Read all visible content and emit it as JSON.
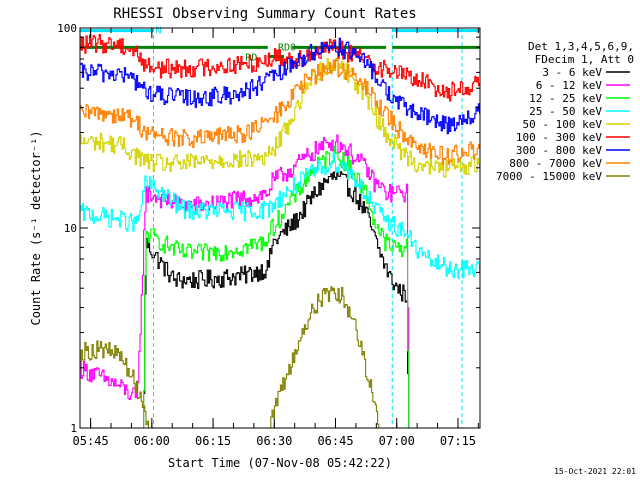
{
  "chart_data": {
    "type": "line",
    "title": "RHESSI Observing Summary Count Rates",
    "xlabel": "Start Time (07-Nov-08 05:42:22)",
    "ylabel": "Count Rate (s⁻¹ detector⁻¹)",
    "y_scale": "log",
    "ylim": [
      1,
      100
    ],
    "xlim_minutes": [
      0,
      98
    ],
    "x_ticks": [
      {
        "label": "05:45",
        "t": 2.6
      },
      {
        "label": "06:00",
        "t": 17.6
      },
      {
        "label": "06:15",
        "t": 32.6
      },
      {
        "label": "06:30",
        "t": 47.6
      },
      {
        "label": "06:45",
        "t": 62.6
      },
      {
        "label": "07:00",
        "t": 77.6
      },
      {
        "label": "07:15",
        "t": 92.6
      }
    ],
    "y_ticks": [
      {
        "label": "1",
        "v": 1
      },
      {
        "label": "10",
        "v": 10
      },
      {
        "label": "100",
        "v": 100
      }
    ],
    "legend": {
      "header": [
        "Det 1,3,4,5,6,9,",
        "FDecim 1, Att 0"
      ],
      "placement": "right"
    },
    "flags": [
      {
        "label": "N",
        "color": "#00e0ff",
        "level": 97,
        "segments": [
          [
            0,
            18
          ],
          [
            76.5,
            98
          ]
        ]
      },
      {
        "label": "RD0",
        "color": "#008000",
        "level": 80,
        "segments": [
          [
            0,
            46
          ],
          [
            52,
            75
          ],
          [
            76.5,
            98
          ]
        ]
      },
      {
        "label": "RD",
        "color": "#008000",
        "level": 72,
        "segments": [
          [
            46,
            50
          ]
        ]
      }
    ],
    "series": [
      {
        "name": "3 - 6 keV",
        "color": "#000000",
        "points": [
          [
            0,
            1
          ],
          [
            15.5,
            1
          ],
          [
            16,
            8.5
          ],
          [
            19,
            7
          ],
          [
            23,
            5.5
          ],
          [
            28,
            5.5
          ],
          [
            33,
            5.6
          ],
          [
            40,
            5.8
          ],
          [
            46,
            6.3
          ],
          [
            47,
            8.3
          ],
          [
            50,
            9.6
          ],
          [
            53,
            11
          ],
          [
            57,
            14.5
          ],
          [
            60,
            17
          ],
          [
            62,
            18
          ],
          [
            64,
            17.5
          ],
          [
            67,
            15
          ],
          [
            70,
            12
          ],
          [
            72,
            9
          ],
          [
            74,
            7
          ],
          [
            76,
            5.6
          ],
          [
            78,
            4.9
          ],
          [
            80,
            4.6
          ],
          [
            80.5,
            1
          ],
          [
            98,
            1
          ]
        ]
      },
      {
        "name": "6 - 12 keV",
        "color": "#ff00ff",
        "points": [
          [
            0,
            2
          ],
          [
            5,
            1.8
          ],
          [
            10,
            1.6
          ],
          [
            14,
            1.4
          ],
          [
            16,
            15
          ],
          [
            20,
            14
          ],
          [
            25,
            13
          ],
          [
            30,
            13
          ],
          [
            35,
            13.5
          ],
          [
            40,
            14
          ],
          [
            44,
            14.5
          ],
          [
            46,
            15
          ],
          [
            47,
            17
          ],
          [
            52,
            20
          ],
          [
            57,
            24
          ],
          [
            60,
            26
          ],
          [
            62,
            27
          ],
          [
            64,
            26
          ],
          [
            67,
            23
          ],
          [
            70,
            20
          ],
          [
            72,
            17
          ],
          [
            75,
            15
          ],
          [
            78,
            15
          ],
          [
            80,
            15
          ],
          [
            80.5,
            1
          ],
          [
            98,
            1
          ]
        ]
      },
      {
        "name": "12 - 25 keV",
        "color": "#00ff00",
        "points": [
          [
            0,
            1
          ],
          [
            15.5,
            1
          ],
          [
            16,
            9.5
          ],
          [
            20,
            8.5
          ],
          [
            25,
            7.5
          ],
          [
            30,
            7.5
          ],
          [
            35,
            7.7
          ],
          [
            40,
            8
          ],
          [
            45,
            8.5
          ],
          [
            47,
            10
          ],
          [
            52,
            14
          ],
          [
            57,
            19.5
          ],
          [
            60,
            22
          ],
          [
            62,
            23.5
          ],
          [
            64,
            22.5
          ],
          [
            67,
            19
          ],
          [
            70,
            15
          ],
          [
            72,
            11
          ],
          [
            74,
            9
          ],
          [
            76,
            8
          ],
          [
            78,
            8
          ],
          [
            80,
            8
          ],
          [
            80.5,
            1
          ],
          [
            98,
            1
          ]
        ]
      },
      {
        "name": "25 - 50 keV",
        "color": "#00ffff",
        "points": [
          [
            0,
            12
          ],
          [
            5,
            11.5
          ],
          [
            10,
            11
          ],
          [
            14,
            10.5
          ],
          [
            16,
            17
          ],
          [
            20,
            15
          ],
          [
            25,
            12.5
          ],
          [
            30,
            12.2
          ],
          [
            35,
            12.2
          ],
          [
            40,
            12.2
          ],
          [
            44,
            12.3
          ],
          [
            46,
            12.5
          ],
          [
            47,
            13
          ],
          [
            52,
            16
          ],
          [
            57,
            19
          ],
          [
            60,
            20.5
          ],
          [
            62,
            21.5
          ],
          [
            64,
            21
          ],
          [
            67,
            18
          ],
          [
            70,
            15
          ],
          [
            72,
            12.5
          ],
          [
            75,
            11
          ],
          [
            78,
            10
          ],
          [
            80,
            9.5
          ],
          [
            82,
            8
          ],
          [
            85,
            7
          ],
          [
            90,
            6.3
          ],
          [
            95,
            6.2
          ],
          [
            98,
            6.3
          ]
        ]
      },
      {
        "name": "50 - 100 keV",
        "color": "#d4d400",
        "points": [
          [
            0,
            27
          ],
          [
            5,
            27
          ],
          [
            10,
            26
          ],
          [
            14,
            23
          ],
          [
            16,
            21.5
          ],
          [
            20,
            21
          ],
          [
            25,
            21
          ],
          [
            30,
            21.5
          ],
          [
            35,
            22
          ],
          [
            40,
            22
          ],
          [
            45,
            22.5
          ],
          [
            47,
            24
          ],
          [
            52,
            36
          ],
          [
            55,
            50
          ],
          [
            58,
            60
          ],
          [
            60,
            64
          ],
          [
            62,
            66
          ],
          [
            64,
            64
          ],
          [
            67,
            56
          ],
          [
            70,
            46
          ],
          [
            72,
            38
          ],
          [
            74,
            32
          ],
          [
            76,
            28
          ],
          [
            78,
            25
          ],
          [
            80,
            23
          ],
          [
            83,
            21
          ],
          [
            86,
            20
          ],
          [
            90,
            20
          ],
          [
            94,
            20.5
          ],
          [
            98,
            21
          ]
        ]
      },
      {
        "name": "100 - 300 keV",
        "color": "#ff0000",
        "points": [
          [
            0,
            83
          ],
          [
            5,
            84
          ],
          [
            10,
            83
          ],
          [
            14,
            75
          ],
          [
            16,
            65
          ],
          [
            20,
            63
          ],
          [
            25,
            63
          ],
          [
            30,
            64
          ],
          [
            35,
            65
          ],
          [
            40,
            66
          ],
          [
            44,
            68
          ],
          [
            46,
            70
          ],
          [
            48,
            72
          ],
          [
            52,
            70
          ],
          [
            56,
            74
          ],
          [
            60,
            78
          ],
          [
            62,
            80
          ],
          [
            64,
            78
          ],
          [
            68,
            72
          ],
          [
            72,
            66
          ],
          [
            75,
            62
          ],
          [
            78,
            60
          ],
          [
            80,
            58
          ],
          [
            83,
            55
          ],
          [
            86,
            52
          ],
          [
            90,
            48
          ],
          [
            94,
            50
          ],
          [
            98,
            55
          ]
        ]
      },
      {
        "name": "300 - 800 keV",
        "color": "#0000ff",
        "points": [
          [
            0,
            60
          ],
          [
            5,
            60
          ],
          [
            10,
            59
          ],
          [
            14,
            54
          ],
          [
            16,
            48
          ],
          [
            20,
            46
          ],
          [
            25,
            45
          ],
          [
            30,
            45
          ],
          [
            35,
            46
          ],
          [
            40,
            48
          ],
          [
            44,
            52
          ],
          [
            46,
            55
          ],
          [
            48,
            58
          ],
          [
            52,
            66
          ],
          [
            56,
            74
          ],
          [
            60,
            80
          ],
          [
            62,
            83
          ],
          [
            64,
            80
          ],
          [
            68,
            72
          ],
          [
            72,
            60
          ],
          [
            74,
            52
          ],
          [
            76,
            46
          ],
          [
            78,
            42
          ],
          [
            80,
            40
          ],
          [
            83,
            37
          ],
          [
            86,
            35
          ],
          [
            90,
            33
          ],
          [
            94,
            35
          ],
          [
            98,
            38
          ]
        ]
      },
      {
        "name": "800 - 7000 keV",
        "color": "#ff8000",
        "points": [
          [
            0,
            37
          ],
          [
            5,
            38
          ],
          [
            10,
            37
          ],
          [
            14,
            34
          ],
          [
            16,
            30
          ],
          [
            20,
            29
          ],
          [
            25,
            28
          ],
          [
            30,
            28
          ],
          [
            35,
            29
          ],
          [
            40,
            30
          ],
          [
            44,
            32
          ],
          [
            46,
            34
          ],
          [
            48,
            37
          ],
          [
            52,
            46
          ],
          [
            56,
            56
          ],
          [
            60,
            62
          ],
          [
            62,
            65
          ],
          [
            64,
            63
          ],
          [
            68,
            55
          ],
          [
            72,
            45
          ],
          [
            74,
            39
          ],
          [
            76,
            35
          ],
          [
            78,
            31
          ],
          [
            80,
            29
          ],
          [
            83,
            26
          ],
          [
            86,
            24
          ],
          [
            90,
            23
          ],
          [
            94,
            24
          ],
          [
            98,
            25
          ]
        ]
      },
      {
        "name": "7000 - 15000 keV",
        "color": "#808000",
        "points": [
          [
            0,
            2.4
          ],
          [
            5,
            2.5
          ],
          [
            10,
            2.3
          ],
          [
            14,
            1.6
          ],
          [
            16,
            1.2
          ],
          [
            17,
            1
          ],
          [
            46,
            1
          ],
          [
            48,
            1.3
          ],
          [
            52,
            2.2
          ],
          [
            55,
            3.2
          ],
          [
            57,
            4
          ],
          [
            60,
            4.6
          ],
          [
            62,
            5
          ],
          [
            64,
            4.6
          ],
          [
            66,
            3.8
          ],
          [
            68,
            3
          ],
          [
            70,
            2
          ],
          [
            72,
            1.4
          ],
          [
            73,
            1
          ],
          [
            98,
            1
          ]
        ]
      }
    ],
    "footer_date": "15-Oct-2021 22:01"
  }
}
